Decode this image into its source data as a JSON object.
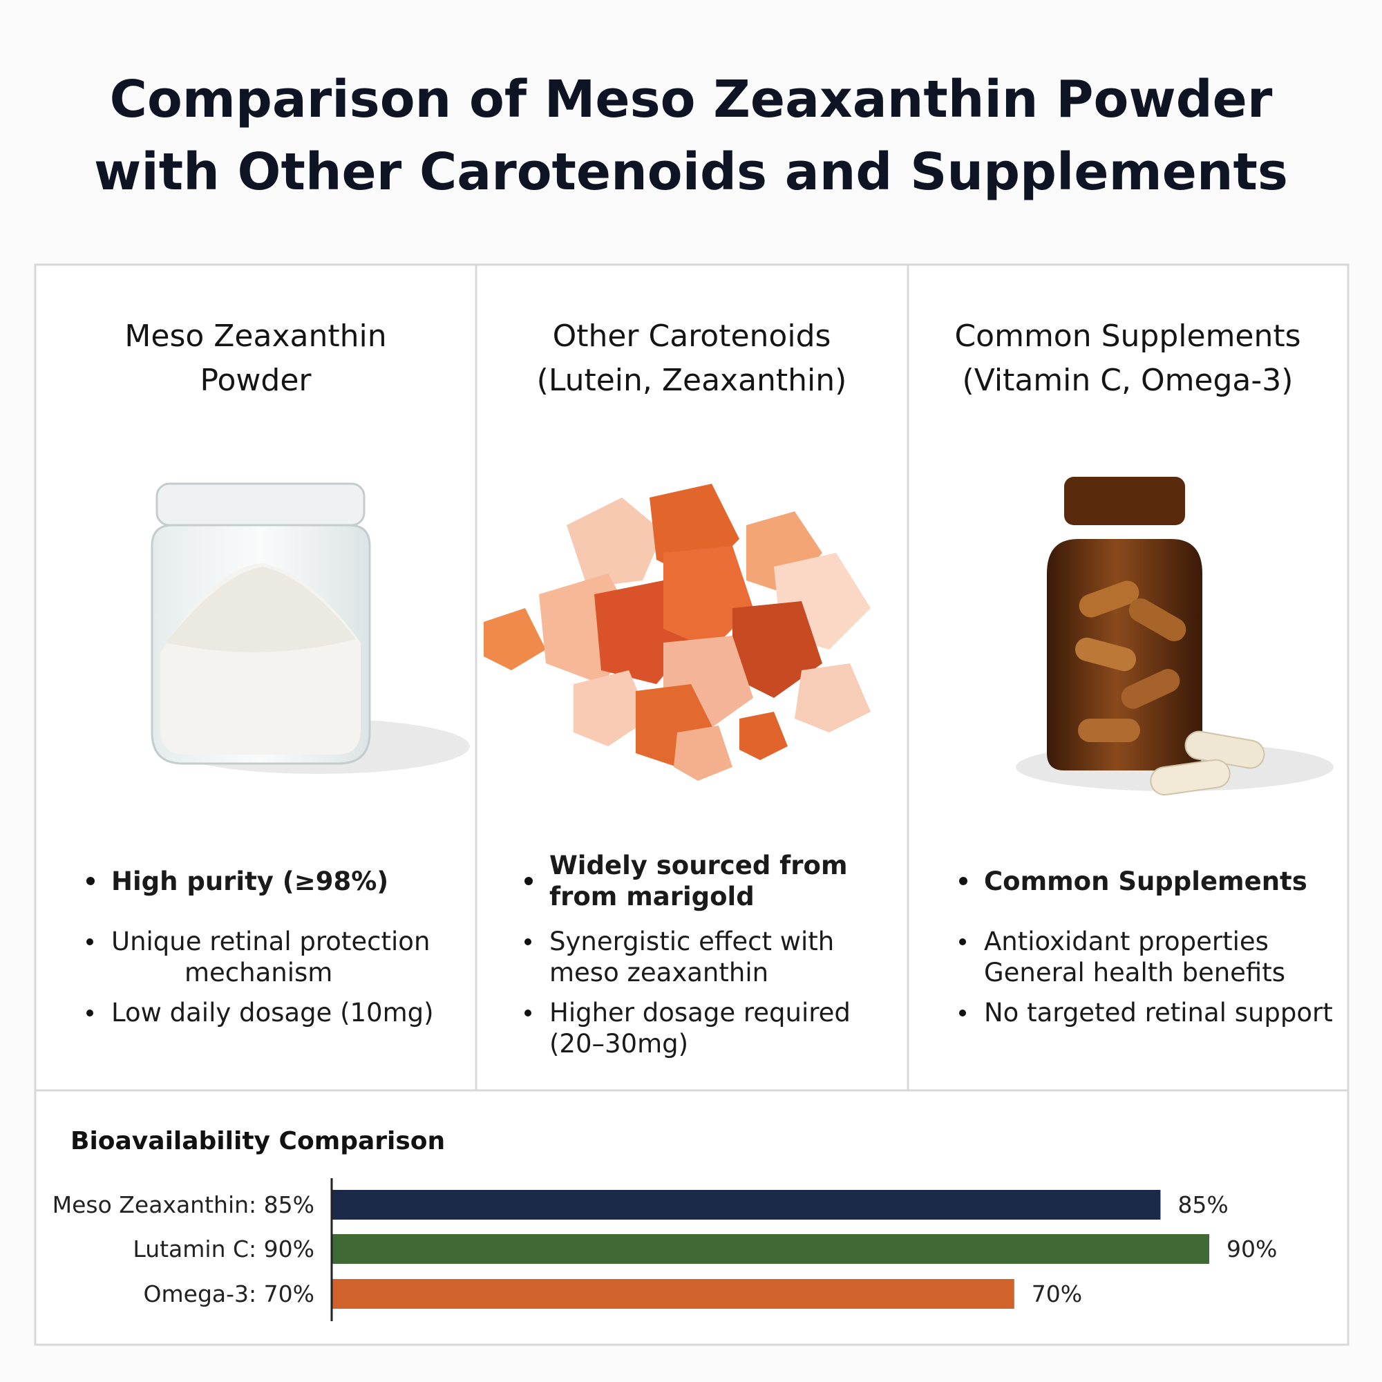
{
  "header": {
    "title": [
      "Comparison of Meso Zeaxanthin Powder",
      "with Other Carotenoids and Supplements"
    ]
  },
  "columns": [
    {
      "heading": [
        "Meso Zeaxanthin",
        "Powder"
      ],
      "bullets": [
        [
          "High purity (≥98%)"
        ],
        [
          "Unique retinal protection",
          "mechanism"
        ],
        [
          "Low daily dosage (10mg)"
        ]
      ]
    },
    {
      "heading": [
        "Other Carotenoids",
        "(Lutein, Zeaxanthin)"
      ],
      "bullets": [
        [
          "Widely sourced from",
          "from marigold"
        ],
        [
          "Synergistic effect with",
          "meso zeaxanthin"
        ],
        [
          "Higher dosage required",
          "(20–30mg)"
        ]
      ]
    },
    {
      "heading": [
        "Common Supplements",
        "(Vitamin C, Omega-3)"
      ],
      "bullets": [
        [
          "Common Supplements"
        ],
        [
          "Antioxidant properties",
          "General health benefits"
        ],
        [
          "No targeted retinal support"
        ]
      ]
    }
  ],
  "chart_data": {
    "type": "bar",
    "orientation": "horizontal",
    "title": "Bioavailability Comparison",
    "categories": [
      "Meso Zeaxanthin: 85%",
      "Lutamin C: 90%",
      "Omega-3: 70%"
    ],
    "values": [
      85,
      90,
      70
    ],
    "value_labels": [
      "85%",
      "90%",
      "70%"
    ],
    "colors": [
      "#1b2a48",
      "#3f6a36",
      "#d0622c"
    ]
  }
}
